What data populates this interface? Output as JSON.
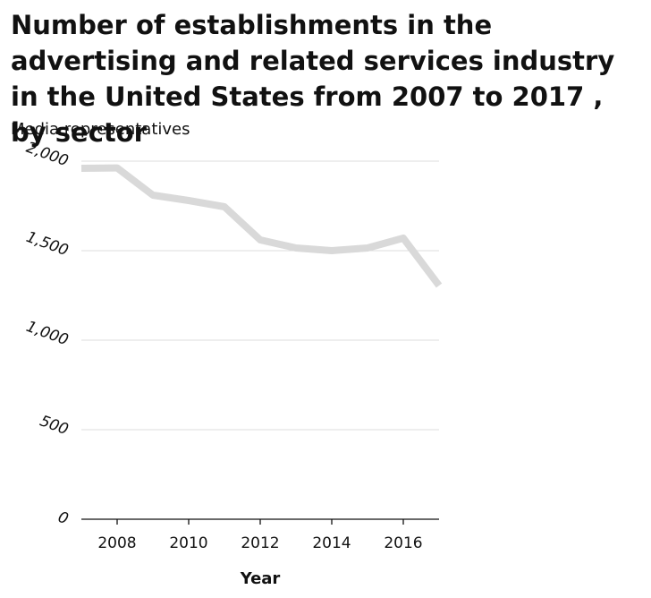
{
  "chart_data": {
    "type": "line",
    "title": "Number of establishments in the advertising and related services industry in the United States from 2007 to 2017 , by sector",
    "ylabel": "Media representatives",
    "xlabel": "Year",
    "x": [
      2007,
      2008,
      2009,
      2010,
      2011,
      2012,
      2013,
      2014,
      2015,
      2016,
      2017
    ],
    "series": [
      {
        "values": [
          1960,
          1962,
          1810,
          1780,
          1745,
          1560,
          1515,
          1500,
          1515,
          1570,
          1305
        ]
      }
    ],
    "xlim": [
      2007,
      2017
    ],
    "ylim": [
      0,
      2000
    ],
    "xticks": [
      "2008",
      "2010",
      "2012",
      "2014",
      "2016"
    ],
    "yticks": [
      "0",
      "500",
      "1,000",
      "1,500",
      "2,000"
    ],
    "grid": "horizontal",
    "line_color": "#d9d9d9",
    "grid_color": "#dddddd"
  }
}
